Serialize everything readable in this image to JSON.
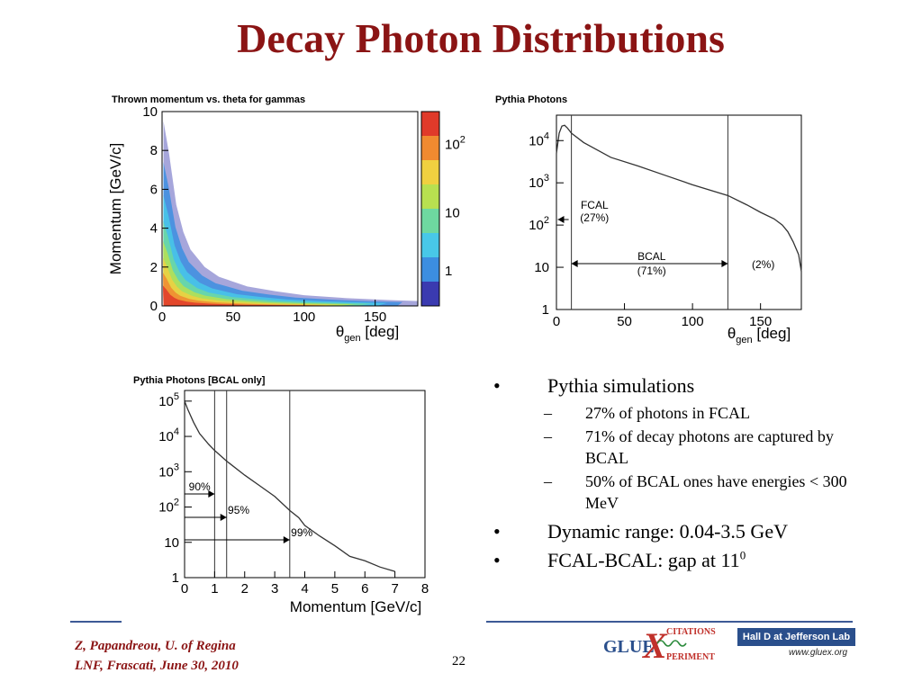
{
  "slide": {
    "title": "Decay Photon Distributions",
    "page_number": "22",
    "author_line": "Z, Papandreou, U. of Regina",
    "venue_line": "LNF, Frascati, June 30, 2010"
  },
  "bullets": [
    {
      "text": "Pythia simulations",
      "subitems": [
        "27% of photons in FCAL",
        "71% of decay photons are captured by BCAL",
        "50% of BCAL ones have energies < 300 MeV"
      ]
    },
    {
      "text": "Dynamic range: 0.04-3.5 GeV",
      "subitems": []
    },
    {
      "text": "FCAL-BCAL: gap at 11",
      "sup": "0",
      "subitems": []
    }
  ],
  "logos": {
    "gluex_word": "GLUE",
    "gluex_x": "X",
    "gluex_top": "CITATIONS",
    "gluex_bottom": "PERIMENT",
    "halld": "Hall D at Jefferson Lab",
    "url": "www.gluex.org"
  },
  "chart_data": [
    {
      "type": "heatmap",
      "title": "Thrown momentum vs. theta for gammas",
      "xlabel": "θgen [deg]",
      "ylabel": "Momentum [GeV/c]",
      "xlim": [
        0,
        180
      ],
      "ylim": [
        0,
        10
      ],
      "x_ticks": [
        "0",
        "50",
        "100",
        "150"
      ],
      "y_ticks": [
        "0",
        "2",
        "4",
        "6",
        "8",
        "10"
      ],
      "colorbar_ticks": [
        "1",
        "10",
        "10²"
      ],
      "colormap": [
        "#3a3ab0",
        "#3c8ee0",
        "#48c8e8",
        "#6ed8a0",
        "#b8e050",
        "#f0d040",
        "#f08a30",
        "#e03a2a"
      ],
      "ridge": {
        "theta": [
          1,
          5,
          10,
          15,
          20,
          30,
          40,
          60,
          80,
          100,
          130,
          160,
          180
        ],
        "momentum_max": [
          9.5,
          7.8,
          5.2,
          3.8,
          2.9,
          2.0,
          1.5,
          1.0,
          0.75,
          0.55,
          0.4,
          0.3,
          0.25
        ]
      }
    },
    {
      "type": "line",
      "title": "Pythia Photons",
      "xlabel": "θgen [deg]",
      "ylabel": "",
      "log_y": true,
      "xlim": [
        0,
        180
      ],
      "ylim": [
        1,
        40000
      ],
      "x_ticks": [
        "0",
        "50",
        "100",
        "150"
      ],
      "y_ticks": [
        "1",
        "10",
        "10²",
        "10³",
        "10⁴"
      ],
      "series": [
        {
          "x": [
            0,
            2,
            4,
            6,
            8,
            11,
            20,
            40,
            60,
            80,
            100,
            126,
            140,
            150,
            160,
            166,
            170,
            174,
            178,
            180
          ],
          "y": [
            5000,
            15000,
            22000,
            23000,
            20000,
            15000,
            9000,
            4000,
            2500,
            1500,
            900,
            500,
            300,
            200,
            140,
            100,
            70,
            40,
            20,
            8
          ]
        }
      ],
      "vlines": [
        11,
        126
      ],
      "annotations": [
        "FCAL",
        "(27%)",
        "BCAL",
        "(71%)",
        "(2%)"
      ]
    },
    {
      "type": "line",
      "title": "Pythia Photons [BCAL only]",
      "xlabel": "Momentum [GeV/c]",
      "ylabel": "",
      "log_y": true,
      "xlim": [
        0,
        8
      ],
      "ylim": [
        1,
        200000
      ],
      "x_ticks": [
        "0",
        "1",
        "2",
        "3",
        "4",
        "5",
        "6",
        "7",
        "8"
      ],
      "y_ticks": [
        "1",
        "10",
        "10²",
        "10³",
        "10⁴",
        "10⁵"
      ],
      "series": [
        {
          "x": [
            0,
            0.1,
            0.3,
            0.5,
            0.8,
            1.0,
            1.4,
            2.0,
            2.5,
            3.0,
            3.5,
            3.8,
            4.0,
            4.5,
            5.0,
            5.5,
            6.0,
            6.5,
            7.0
          ],
          "y": [
            100000,
            60000,
            25000,
            12000,
            6000,
            4000,
            2000,
            800,
            400,
            200,
            80,
            50,
            30,
            15,
            8,
            4,
            3,
            2,
            1.5
          ]
        }
      ],
      "vlines": [
        1.0,
        1.4,
        3.5
      ],
      "annotations": [
        "90%",
        "95%",
        "99%"
      ]
    }
  ]
}
